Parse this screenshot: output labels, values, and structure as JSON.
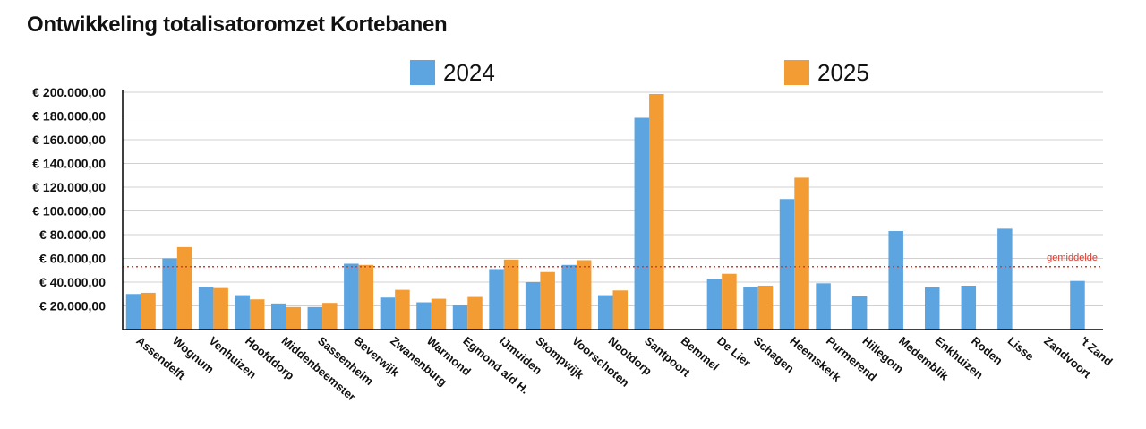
{
  "chart_data": {
    "type": "bar",
    "title": "Ontwikkeling totalisatoromzet Kortebanen",
    "categories": [
      "Assendelft",
      "Wognum",
      "Venhuizen",
      "Hoofddorp",
      "Middenbeemster",
      "Sassenheim",
      "Beverwijk",
      "Zwanenburg",
      "Warmond",
      "Egmond a/d H.",
      "IJmuiden",
      "Stompwijk",
      "Voorschoten",
      "Nootdorp",
      "Santpoort",
      "Bemmel",
      "De Lier",
      "Schagen",
      "Heemskerk",
      "Purmerend",
      "Hillegom",
      "Medemblik",
      "Enkhuizen",
      "Roden",
      "Lisse",
      "Zandvoort",
      "'t Zand"
    ],
    "series": [
      {
        "name": "2024",
        "color": "#5DA5E0",
        "values": [
          30000,
          60000,
          36000,
          29000,
          22000,
          19000,
          55500,
          27000,
          23000,
          20500,
          51000,
          40000,
          54500,
          29000,
          178500,
          null,
          43000,
          36000,
          110000,
          39000,
          28000,
          83000,
          35500,
          37000,
          85000,
          null,
          41000
        ]
      },
      {
        "name": "2025",
        "color": "#F39C34",
        "values": [
          31000,
          69500,
          35000,
          25500,
          19000,
          22500,
          54500,
          33500,
          26000,
          27500,
          59000,
          48500,
          58500,
          33000,
          198500,
          null,
          47000,
          37000,
          128000,
          null,
          null,
          null,
          null,
          null,
          null,
          null,
          null
        ]
      }
    ],
    "ylim": [
      0,
      200000
    ],
    "yticks": [
      {
        "value": 20000,
        "label": "€ 20.000,00"
      },
      {
        "value": 40000,
        "label": "€ 40.000,00"
      },
      {
        "value": 60000,
        "label": "€ 60.000,00"
      },
      {
        "value": 80000,
        "label": "€ 80.000,00"
      },
      {
        "value": 100000,
        "label": "€ 100.000,00"
      },
      {
        "value": 120000,
        "label": "€ 120.000,00"
      },
      {
        "value": 140000,
        "label": "€ 140.000,00"
      },
      {
        "value": 160000,
        "label": "€ 160.000,00"
      },
      {
        "value": 180000,
        "label": "€ 180.000,00"
      },
      {
        "value": 200000,
        "label": "€ 200.000,00"
      }
    ],
    "average": {
      "label": "gemiddelde",
      "value": 53000,
      "color": "#D93A2B"
    },
    "grid": true,
    "legend": "top"
  }
}
